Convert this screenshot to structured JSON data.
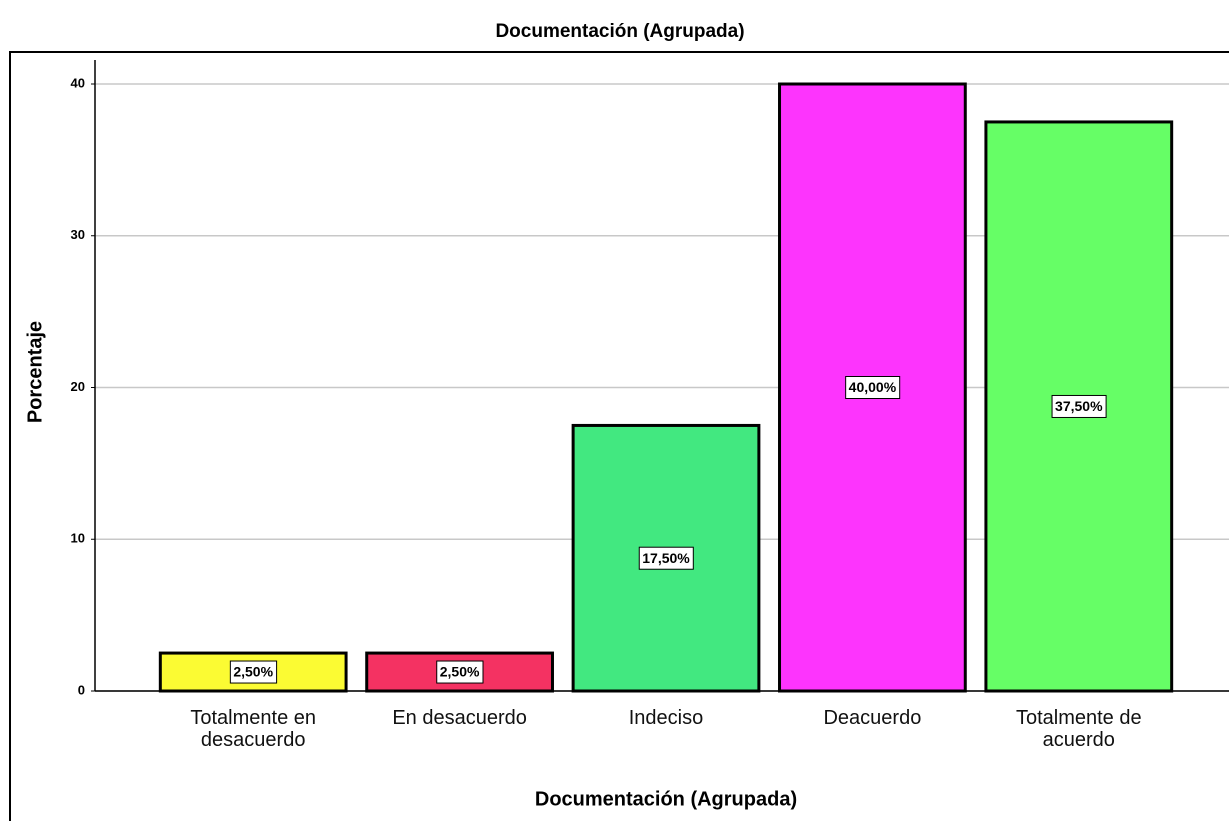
{
  "chart_data": {
    "type": "bar",
    "title": "Documentación  (Agrupada)",
    "x_label": "Documentación  (Agrupada)",
    "y_label": "Porcentaje",
    "categories": [
      "Totalmente en desacuerdo",
      "En desacuerdo",
      "Indeciso",
      "Deacuerdo",
      "Totalmente de acuerdo"
    ],
    "values": [
      2.5,
      2.5,
      17.5,
      40,
      37.5
    ],
    "value_labels": [
      "2,50%",
      "2,50%",
      "17,50%",
      "40,00%",
      "37,50%"
    ],
    "colors": [
      "#fbfb33",
      "#f43262",
      "#42e880",
      "#fd34fd",
      "#66fe66"
    ],
    "ylim": [
      0,
      40
    ],
    "yticks": [
      0,
      10,
      20,
      30,
      40
    ],
    "grid": true
  }
}
